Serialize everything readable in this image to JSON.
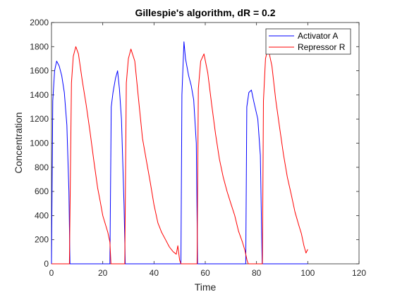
{
  "chart_data": {
    "type": "line",
    "title": "Gillespie's algorithm, dR = 0.2",
    "xlabel": "Time",
    "ylabel": "Concentration",
    "xlim": [
      0,
      120
    ],
    "ylim": [
      0,
      2000
    ],
    "xticks": [
      0,
      20,
      40,
      60,
      80,
      100,
      120
    ],
    "yticks": [
      0,
      200,
      400,
      600,
      800,
      1000,
      1200,
      1400,
      1600,
      1800,
      2000
    ],
    "grid": false,
    "legend_position": "top-right",
    "series": [
      {
        "name": "Activator A",
        "color": "#0000ff",
        "points": [
          [
            0,
            0
          ],
          [
            0.5,
            1350
          ],
          [
            1.2,
            1600
          ],
          [
            2,
            1680
          ],
          [
            3,
            1640
          ],
          [
            4,
            1560
          ],
          [
            5,
            1420
          ],
          [
            6,
            1150
          ],
          [
            6.8,
            600
          ],
          [
            7.2,
            0
          ],
          [
            8,
            0
          ],
          [
            15,
            0
          ],
          [
            22,
            0
          ],
          [
            22.8,
            0
          ],
          [
            23.3,
            1300
          ],
          [
            24,
            1420
          ],
          [
            25,
            1540
          ],
          [
            25.8,
            1600
          ],
          [
            26.5,
            1450
          ],
          [
            27.3,
            1200
          ],
          [
            28.3,
            500
          ],
          [
            28.8,
            0
          ],
          [
            30,
            0
          ],
          [
            40,
            0
          ],
          [
            49.5,
            0
          ],
          [
            50.5,
            0
          ],
          [
            50.9,
            1400
          ],
          [
            51.7,
            1840
          ],
          [
            52.3,
            1700
          ],
          [
            53.5,
            1560
          ],
          [
            54.5,
            1480
          ],
          [
            55.5,
            1360
          ],
          [
            56.5,
            1000
          ],
          [
            57,
            0
          ],
          [
            60,
            0
          ],
          [
            70,
            0
          ],
          [
            75.8,
            0
          ],
          [
            76.2,
            1300
          ],
          [
            77,
            1420
          ],
          [
            78,
            1440
          ],
          [
            79,
            1340
          ],
          [
            80.5,
            1200
          ],
          [
            81.5,
            900
          ],
          [
            82.2,
            0
          ],
          [
            85,
            0
          ],
          [
            92,
            0
          ],
          [
            100,
            0
          ]
        ]
      },
      {
        "name": "Repressor R",
        "color": "#ff0000",
        "points": [
          [
            0,
            0
          ],
          [
            7,
            0
          ],
          [
            7.8,
            1500
          ],
          [
            8.5,
            1720
          ],
          [
            9.5,
            1800
          ],
          [
            10.5,
            1740
          ],
          [
            12,
            1520
          ],
          [
            13.5,
            1320
          ],
          [
            15,
            1100
          ],
          [
            16.5,
            860
          ],
          [
            18,
            630
          ],
          [
            19,
            520
          ],
          [
            20,
            400
          ],
          [
            21,
            330
          ],
          [
            22,
            260
          ],
          [
            22.8,
            180
          ],
          [
            23.2,
            0
          ],
          [
            27.5,
            0
          ],
          [
            28.6,
            0
          ],
          [
            29.2,
            1500
          ],
          [
            30,
            1700
          ],
          [
            31,
            1780
          ],
          [
            32.5,
            1680
          ],
          [
            34,
            1360
          ],
          [
            35.5,
            1040
          ],
          [
            37,
            860
          ],
          [
            38.5,
            680
          ],
          [
            40,
            490
          ],
          [
            41.5,
            340
          ],
          [
            43,
            260
          ],
          [
            44.5,
            200
          ],
          [
            46,
            140
          ],
          [
            47.5,
            100
          ],
          [
            48.7,
            80
          ],
          [
            49.3,
            150
          ],
          [
            50,
            30
          ],
          [
            50.5,
            0
          ],
          [
            55,
            0
          ],
          [
            56.8,
            0
          ],
          [
            57.3,
            1450
          ],
          [
            58.2,
            1680
          ],
          [
            59.5,
            1740
          ],
          [
            61,
            1580
          ],
          [
            62.5,
            1320
          ],
          [
            64,
            1080
          ],
          [
            65.5,
            870
          ],
          [
            67,
            720
          ],
          [
            68.5,
            600
          ],
          [
            70,
            500
          ],
          [
            71.5,
            400
          ],
          [
            73,
            270
          ],
          [
            74.5,
            180
          ],
          [
            75.5,
            110
          ],
          [
            76.3,
            30
          ],
          [
            76.8,
            0
          ],
          [
            81.5,
            0
          ],
          [
            82.3,
            0
          ],
          [
            82.7,
            1350
          ],
          [
            83.5,
            1700
          ],
          [
            84.5,
            1790
          ],
          [
            86,
            1640
          ],
          [
            87.5,
            1360
          ],
          [
            89,
            1130
          ],
          [
            90.5,
            910
          ],
          [
            92,
            720
          ],
          [
            93.5,
            580
          ],
          [
            95,
            430
          ],
          [
            96.5,
            320
          ],
          [
            97.5,
            250
          ],
          [
            98.5,
            150
          ],
          [
            99.3,
            90
          ],
          [
            100,
            120
          ]
        ]
      }
    ]
  }
}
